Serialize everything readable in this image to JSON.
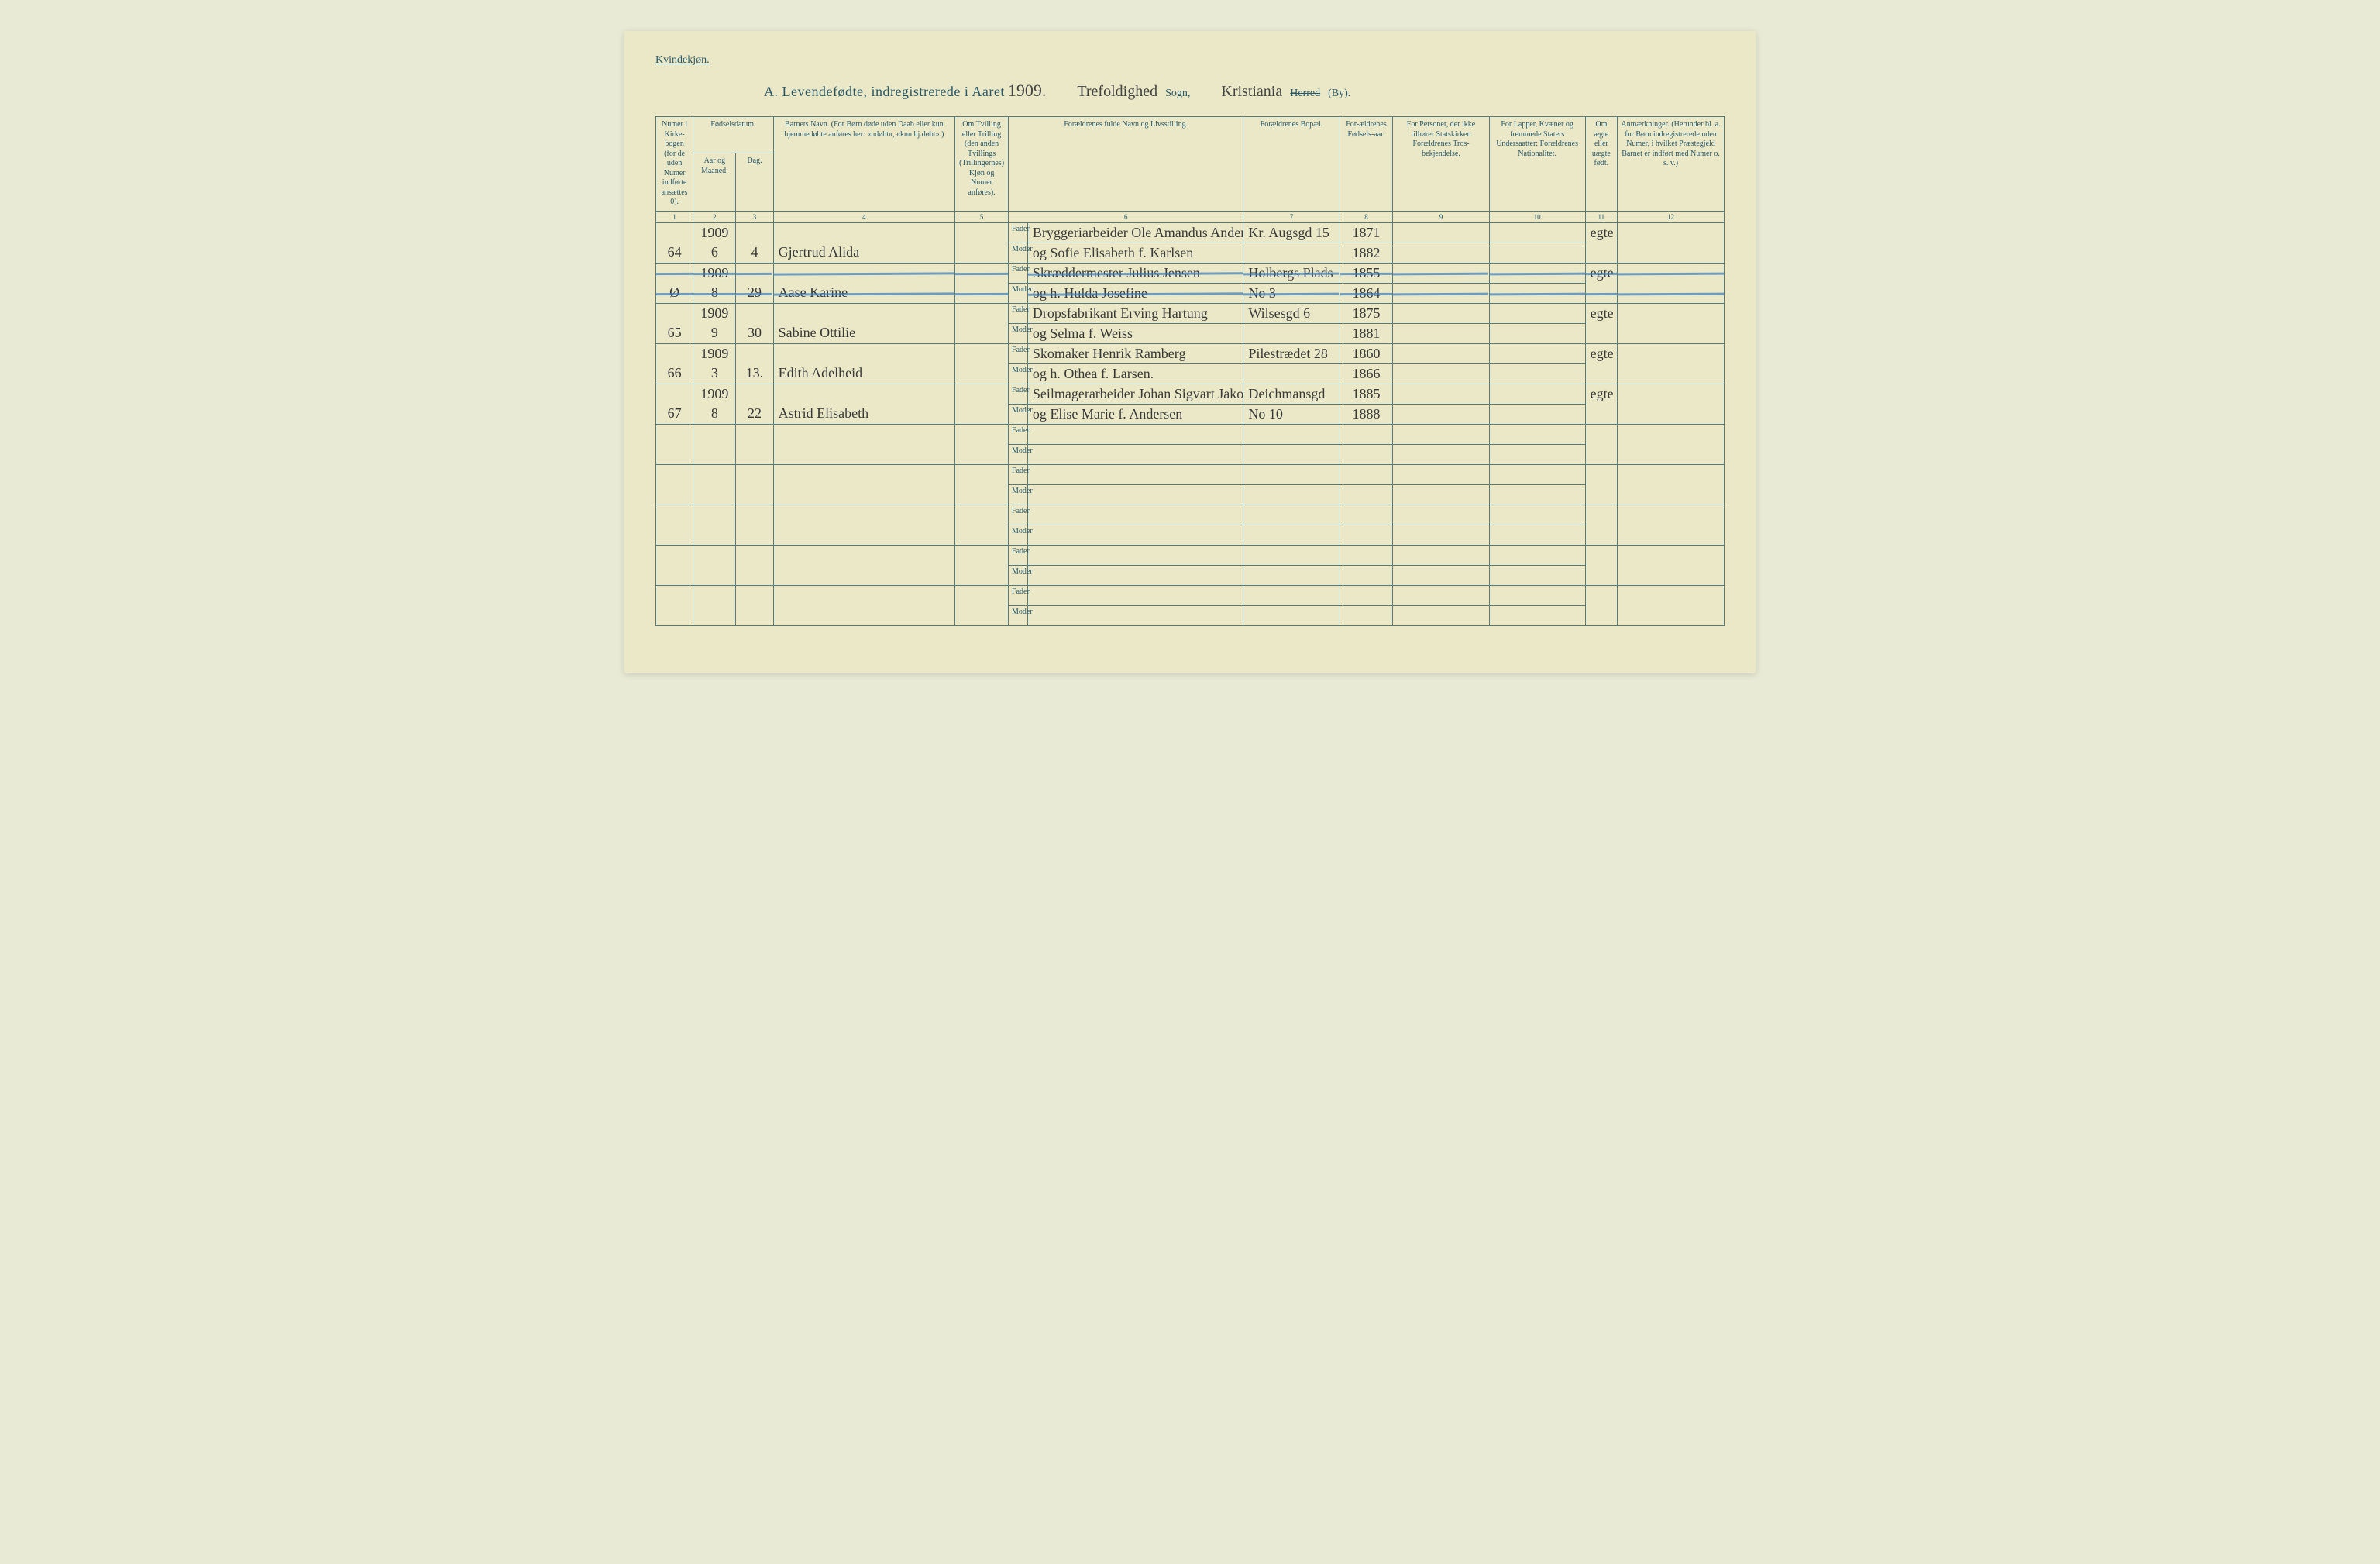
{
  "colors": {
    "paper": "#ebe8c8",
    "ink_printed": "#2a5a6a",
    "ink_hand": "#3a3a3a",
    "rule": "#5a7a7a",
    "strike_blue": "#3a7ab8"
  },
  "header": {
    "top_label": "Kvindekjøn.",
    "title_prefix": "A.  Levendefødte, indregistrerede i Aaret",
    "year": "1909.",
    "sogn_value": "Trefoldighed",
    "sogn_label": "Sogn,",
    "by_value": "Kristiania",
    "by_struck": "Herred",
    "by_label": "(By)."
  },
  "columns": {
    "c1": "Numer i Kirke-bogen (for de uden Numer indførte ansættes 0).",
    "c2_group": "Fødselsdatum.",
    "c2a": "Aar og Maaned.",
    "c2b": "Dag.",
    "c4": "Barnets Navn.\n(For Børn døde uden Daab eller kun hjemmedøbte anføres her: «udøbt», «kun hj.døbt».)",
    "c5": "Om Tvilling eller Trilling (den anden Tvillings (Trillingernes) Kjøn og Numer anføres).",
    "c6": "Forældrenes fulde Navn og Livsstilling.",
    "c7": "Forældrenes Bopæl.",
    "c8": "For-ældrenes Fødsels-aar.",
    "c9": "For Personer, der ikke tilhører Statskirken Forældrenes Tros-bekjendelse.",
    "c10": "For Lapper, Kvæner og fremmede Staters Undersaatter: Forældrenes Nationalitet.",
    "c11": "Om ægte eller uægte født.",
    "c12": "Anmærkninger.\n(Herunder bl. a. for Børn indregistrerede uden Numer, i hvilket Præstegjeld Barnet er indført med Numer o. s. v.)"
  },
  "colnums": [
    "1",
    "2",
    "3",
    "4",
    "5",
    "6",
    "7",
    "8",
    "9",
    "10",
    "11",
    "12"
  ],
  "fm": {
    "fader": "Fader",
    "moder": "Moder"
  },
  "rows": [
    {
      "num": "64",
      "aar_top": "1909",
      "aar_bot": "6",
      "dag": "4",
      "navn": "Gjertrud Alida",
      "fader": "Bryggeriarbeider Ole Amandus Andersen",
      "moder": "og Sofie Elisabeth f. Karlsen",
      "bop_f": "Kr. Augsgd 15",
      "bop_m": "",
      "faar_f": "1871",
      "faar_m": "1882",
      "aegte": "egte",
      "struck": false
    },
    {
      "num": "Ø",
      "aar_top": "1909",
      "aar_bot": "8",
      "dag": "29",
      "navn": "Aase Karine",
      "fader": "Skræddermester Julius Jensen",
      "moder": "og h. Hulda Josefine",
      "bop_f": "Holbergs Plads",
      "bop_m": "No 3",
      "faar_f": "1855",
      "faar_m": "1864",
      "aegte": "egte",
      "struck": true
    },
    {
      "num": "65",
      "aar_top": "1909",
      "aar_bot": "9",
      "dag": "30",
      "navn": "Sabine Ottilie",
      "fader": "Dropsfabrikant Erving Hartung",
      "moder": "og Selma f. Weiss",
      "bop_f": "Wilsesgd 6",
      "bop_m": "",
      "faar_f": "1875",
      "faar_m": "1881",
      "aegte": "egte",
      "struck": false
    },
    {
      "num": "66",
      "aar_top": "1909",
      "aar_bot": "3",
      "dag": "13.",
      "navn": "Edith Adelheid",
      "fader": "Skomaker Henrik Ramberg",
      "moder": "og h. Othea f. Larsen.",
      "bop_f": "Pilestrædet 28",
      "bop_m": "",
      "faar_f": "1860",
      "faar_m": "1866",
      "aegte": "egte",
      "struck": false
    },
    {
      "num": "67",
      "aar_top": "1909",
      "aar_bot": "8",
      "dag": "22",
      "navn": "Astrid Elisabeth",
      "fader": "Seilmagerarbeider Johan Sigvart Jakobsen",
      "moder": "og Elise Marie f. Andersen",
      "bop_f": "Deichmansgd",
      "bop_m": "No 10",
      "faar_f": "1885",
      "faar_m": "1888",
      "aegte": "egte",
      "struck": false
    }
  ],
  "empty_row_count": 5
}
